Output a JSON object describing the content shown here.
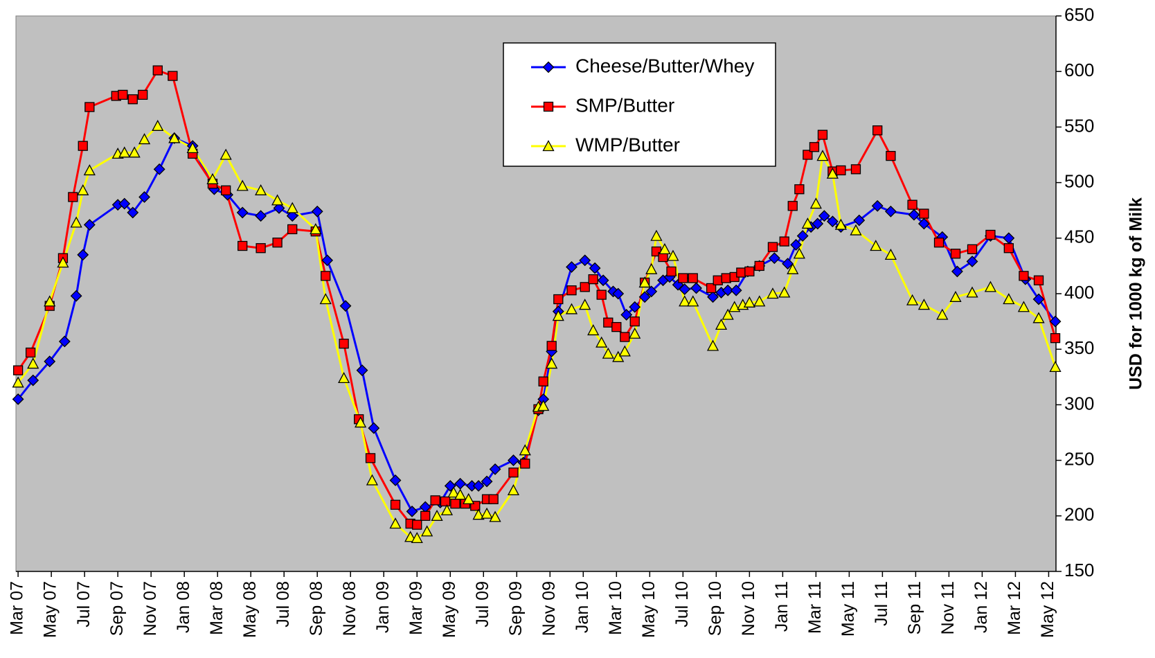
{
  "chart_data": {
    "type": "line",
    "y_axis_label": "USD for 1000 kg of Milk",
    "xlim": [
      -0.13,
      62.44
    ],
    "xticks": [
      {
        "value": 0,
        "label": "Mar 07"
      },
      {
        "value": 2,
        "label": "May 07"
      },
      {
        "value": 4,
        "label": "Jul 07"
      },
      {
        "value": 6,
        "label": "Sep 07"
      },
      {
        "value": 8,
        "label": "Nov 07"
      },
      {
        "value": 10,
        "label": "Jan 08"
      },
      {
        "value": 12,
        "label": "Mar 08"
      },
      {
        "value": 14,
        "label": "May 08"
      },
      {
        "value": 16,
        "label": "Jul 08"
      },
      {
        "value": 18,
        "label": "Sep 08"
      },
      {
        "value": 20,
        "label": "Nov 08"
      },
      {
        "value": 22,
        "label": "Jan 09"
      },
      {
        "value": 24,
        "label": "Mar 09"
      },
      {
        "value": 26,
        "label": "May 09"
      },
      {
        "value": 28,
        "label": "Jul 09"
      },
      {
        "value": 30,
        "label": "Sep 09"
      },
      {
        "value": 32,
        "label": "Nov 09"
      },
      {
        "value": 34,
        "label": "Jan 10"
      },
      {
        "value": 36,
        "label": "Mar 10"
      },
      {
        "value": 38,
        "label": "May 10"
      },
      {
        "value": 40,
        "label": "Jul 10"
      },
      {
        "value": 42,
        "label": "Sep 10"
      },
      {
        "value": 44,
        "label": "Nov 10"
      },
      {
        "value": 46,
        "label": "Jan 11"
      },
      {
        "value": 48,
        "label": "Mar 11"
      },
      {
        "value": 50,
        "label": "May 11"
      },
      {
        "value": 52,
        "label": "Jul 11"
      },
      {
        "value": 54,
        "label": "Sep 11"
      },
      {
        "value": 56,
        "label": "Nov 11"
      },
      {
        "value": 58,
        "label": "Jan 12"
      },
      {
        "value": 60,
        "label": "Mar 12"
      },
      {
        "value": 62,
        "label": "May 12"
      }
    ],
    "ylim": [
      150,
      650
    ],
    "yticks": [
      150,
      200,
      250,
      300,
      350,
      400,
      450,
      500,
      550,
      600,
      650
    ],
    "y_axis_side": "right",
    "background": "#c0c0c0",
    "legend": "top-center",
    "series": [
      {
        "name": "Cheese/Butter/Whey",
        "color": "#0000ff",
        "marker": "diamond",
        "x": [
          0,
          0.9,
          1.9,
          2.8,
          3.5,
          3.9,
          4.3,
          6.0,
          6.4,
          6.9,
          7.6,
          8.5,
          9.4,
          10.5,
          11.8,
          12.6,
          13.5,
          14.6,
          15.7,
          16.5,
          18.0,
          18.6,
          19.7,
          20.7,
          21.4,
          22.7,
          23.7,
          24.5,
          25.4,
          26.0,
          26.6,
          27.3,
          27.7,
          28.2,
          28.7,
          29.8,
          30.4,
          31.3,
          31.6,
          32.1,
          32.5,
          33.3,
          34.1,
          34.7,
          35.2,
          35.8,
          36.1,
          36.6,
          37.1,
          37.7,
          38.1,
          38.8,
          39.2,
          39.7,
          40.1,
          40.8,
          41.8,
          42.3,
          42.7,
          43.2,
          43.9,
          44.6,
          45.5,
          46.3,
          46.8,
          47.2,
          47.7,
          48.1,
          48.5,
          49.0,
          49.5,
          50.6,
          51.7,
          52.5,
          53.9,
          54.5,
          55.6,
          56.5,
          57.4,
          58.5,
          59.6,
          60.6,
          61.4,
          62.4
        ],
        "values": [
          305,
          322,
          339,
          357,
          398,
          435,
          462,
          480,
          481,
          473,
          487,
          512,
          540,
          533,
          494,
          489,
          473,
          470,
          477,
          470,
          474,
          430,
          389,
          331,
          279,
          232,
          204,
          208,
          212,
          227,
          229,
          227,
          227,
          231,
          242,
          250,
          248,
          295,
          305,
          348,
          384,
          424,
          430,
          423,
          412,
          402,
          400,
          381,
          388,
          397,
          402,
          412,
          415,
          408,
          404,
          405,
          397,
          401,
          403,
          403,
          420,
          425,
          432,
          427,
          444,
          452,
          460,
          463,
          470,
          465,
          460,
          466,
          479,
          474,
          471,
          463,
          451,
          420,
          429,
          452,
          450,
          413,
          395,
          375
        ]
      },
      {
        "name": "SMP/Butter",
        "color": "#ff0000",
        "marker": "square",
        "x": [
          0,
          0.75,
          1.9,
          2.7,
          3.3,
          3.9,
          4.3,
          5.9,
          6.3,
          6.9,
          7.5,
          8.4,
          9.3,
          10.5,
          11.7,
          12.5,
          13.5,
          14.6,
          15.6,
          16.5,
          17.9,
          18.5,
          19.6,
          20.5,
          21.2,
          22.7,
          23.6,
          24.0,
          24.5,
          25.1,
          25.7,
          26.3,
          26.9,
          27.5,
          28.2,
          28.6,
          29.8,
          30.5,
          31.3,
          31.6,
          32.1,
          32.5,
          33.3,
          34.1,
          34.6,
          35.1,
          35.5,
          36.0,
          36.5,
          37.1,
          37.7,
          38.4,
          38.8,
          39.3,
          40.0,
          40.6,
          41.7,
          42.1,
          42.6,
          43.1,
          43.5,
          44.0,
          44.6,
          45.4,
          46.1,
          46.6,
          47.0,
          47.5,
          47.9,
          48.4,
          49.0,
          49.5,
          50.4,
          51.7,
          52.5,
          53.8,
          54.5,
          55.4,
          56.4,
          57.4,
          58.5,
          59.6,
          60.5,
          61.4,
          62.4
        ],
        "values": [
          331,
          347,
          389,
          432,
          487,
          533,
          568,
          578,
          579,
          575,
          579,
          601,
          596,
          526,
          499,
          493,
          443,
          441,
          446,
          458,
          456,
          416,
          355,
          287,
          252,
          210,
          193,
          192,
          200,
          214,
          213,
          211,
          211,
          209,
          215,
          215,
          239,
          247,
          296,
          321,
          353,
          395,
          403,
          406,
          413,
          399,
          374,
          370,
          361,
          375,
          410,
          438,
          433,
          420,
          414,
          414,
          405,
          412,
          414,
          415,
          419,
          420,
          425,
          442,
          447,
          479,
          494,
          525,
          532,
          543,
          510,
          511,
          512,
          547,
          524,
          480,
          472,
          446,
          436,
          440,
          453,
          441,
          416,
          412,
          360
        ]
      },
      {
        "name": "WMP/Butter",
        "color": "#ffff00",
        "marker": "triangle",
        "x": [
          0,
          0.9,
          1.9,
          2.7,
          3.5,
          3.9,
          4.3,
          6.0,
          6.4,
          7.0,
          7.6,
          8.4,
          9.4,
          10.5,
          11.7,
          12.5,
          13.5,
          14.6,
          15.6,
          16.5,
          17.9,
          18.5,
          19.6,
          20.6,
          21.3,
          22.7,
          23.6,
          24.0,
          24.6,
          25.2,
          25.8,
          26.2,
          26.6,
          27.1,
          27.7,
          28.2,
          28.7,
          29.8,
          30.5,
          31.3,
          31.6,
          32.1,
          32.5,
          33.3,
          34.1,
          34.6,
          35.1,
          35.5,
          36.1,
          36.5,
          37.1,
          37.7,
          38.1,
          38.4,
          38.9,
          39.4,
          40.1,
          40.6,
          41.8,
          42.3,
          42.7,
          43.1,
          43.6,
          44.0,
          44.6,
          45.4,
          46.1,
          46.6,
          47.0,
          47.5,
          48.0,
          48.4,
          49.0,
          49.5,
          50.4,
          51.6,
          52.5,
          53.8,
          54.5,
          55.6,
          56.4,
          57.4,
          58.5,
          59.6,
          60.5,
          61.4,
          62.4
        ],
        "values": [
          320,
          337,
          393,
          428,
          464,
          493,
          511,
          526,
          527,
          527,
          539,
          551,
          540,
          531,
          503,
          525,
          497,
          493,
          484,
          477,
          458,
          395,
          324,
          284,
          232,
          193,
          181,
          180,
          186,
          200,
          205,
          221,
          219,
          215,
          201,
          202,
          199,
          223,
          259,
          298,
          299,
          337,
          380,
          386,
          390,
          367,
          356,
          346,
          343,
          348,
          364,
          410,
          422,
          452,
          440,
          434,
          393,
          393,
          353,
          372,
          381,
          388,
          390,
          392,
          393,
          400,
          401,
          422,
          436,
          463,
          481,
          524,
          508,
          462,
          457,
          443,
          435,
          394,
          390,
          381,
          397,
          401,
          406,
          395,
          388,
          378,
          334
        ]
      }
    ]
  }
}
